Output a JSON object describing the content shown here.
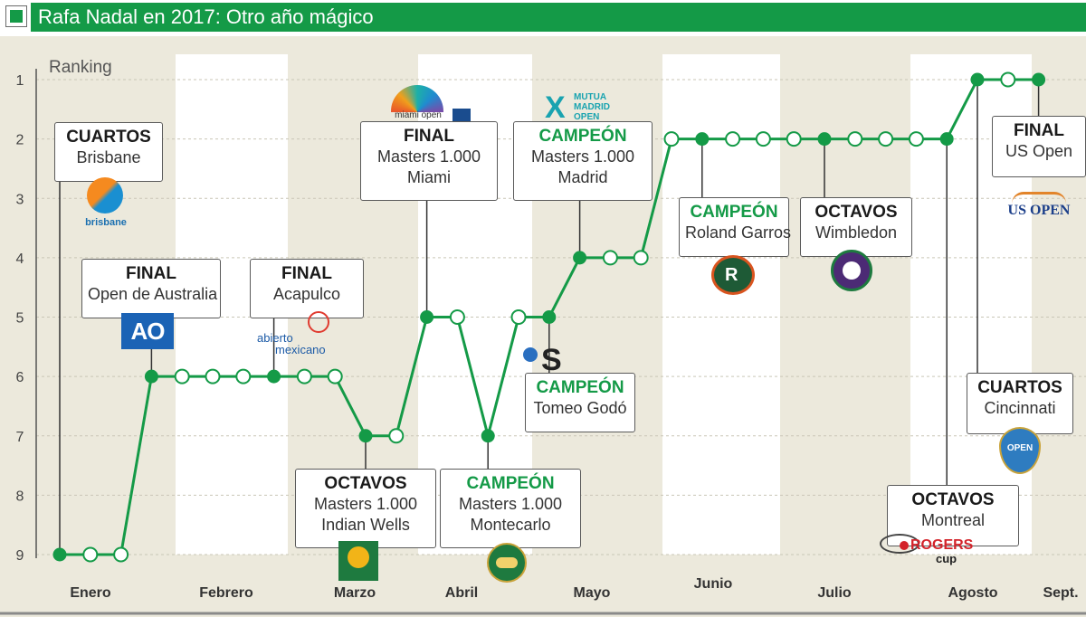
{
  "title": "Rafa Nadal en 2017: Otro año mágico",
  "colors": {
    "accent": "#149a47",
    "band_light": "#ffffff",
    "band_dark": "#ece9dc"
  },
  "chart_data": {
    "type": "line",
    "title": "Rafa Nadal en 2017: Otro año mágico",
    "ylabel": "Ranking",
    "yticks": [
      "1",
      "2",
      "3",
      "4",
      "5",
      "6",
      "7",
      "8",
      "9"
    ],
    "ylim": [
      1,
      9
    ],
    "y_inverted": true,
    "months": [
      "Enero",
      "Febrero",
      "Marzo",
      "Abril",
      "Mayo",
      "Junio",
      "Julio",
      "Agosto",
      "Sept."
    ],
    "grid": true,
    "series": [
      {
        "values": [
          9,
          9,
          9,
          6,
          6,
          6,
          6,
          6,
          6,
          6,
          7,
          7,
          5,
          5,
          7,
          5,
          5,
          4,
          4,
          4,
          2,
          2,
          2,
          2,
          2,
          2,
          2,
          2,
          2,
          2,
          1,
          1,
          1
        ]
      }
    ],
    "filled_points": [
      0,
      3,
      7,
      10,
      12,
      14,
      16,
      17,
      21,
      25,
      29,
      30,
      32
    ],
    "annotations": [
      {
        "result": "CUARTOS",
        "lines": [
          "Brisbane"
        ]
      },
      {
        "result": "FINAL",
        "lines": [
          "Open de Australia"
        ]
      },
      {
        "result": "FINAL",
        "lines": [
          "Acapulco"
        ]
      },
      {
        "result": "OCTAVOS",
        "lines": [
          "Masters 1.000",
          "Indian Wells"
        ]
      },
      {
        "result": "FINAL",
        "lines": [
          "Masters 1.000",
          "Miami"
        ]
      },
      {
        "result": "CAMPEÓN",
        "lines": [
          "Masters 1.000",
          "Montecarlo"
        ]
      },
      {
        "result": "CAMPEÓN",
        "lines": [
          "Tomeo Godó"
        ]
      },
      {
        "result": "CAMPEÓN",
        "lines": [
          "Masters 1.000",
          "Madrid"
        ]
      },
      {
        "result": "CAMPEÓN",
        "lines": [
          "Roland Garros"
        ]
      },
      {
        "result": "OCTAVOS",
        "lines": [
          "Wimbledon"
        ]
      },
      {
        "result": "OCTAVOS",
        "lines": [
          "Montreal"
        ]
      },
      {
        "result": "CUARTOS",
        "lines": [
          "Cincinnati"
        ]
      },
      {
        "result": "FINAL",
        "lines": [
          "US Open"
        ]
      }
    ]
  },
  "logos": {
    "brisbane": "brisbane",
    "ao": "AO",
    "abierto": [
      "abierto",
      "mexicano"
    ],
    "miami": "miami open",
    "mutua": [
      "MUTUA",
      "MADRID",
      "OPEN"
    ],
    "godo": "S",
    "usopen": "US OPEN",
    "rogers": [
      "ROGERS",
      "cup"
    ],
    "cinci": "OPEN"
  }
}
